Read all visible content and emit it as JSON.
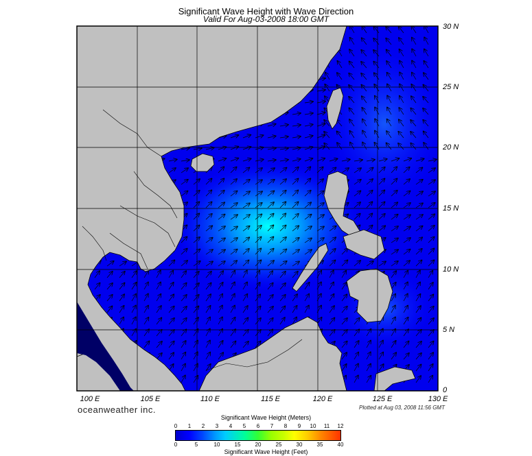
{
  "header": {
    "title": "Significant Wave Height with Wave Direction",
    "subtitle": "Valid For Aug-03-2008 18:00 GMT"
  },
  "map": {
    "lat_labels": [
      "30 N",
      "25 N",
      "20 N",
      "15 N",
      "10 N",
      "5 N",
      "0"
    ],
    "lon_labels": [
      "100 E",
      "105 E",
      "110 E",
      "115 E",
      "120 E",
      "125 E",
      "130 E"
    ],
    "lon_range": [
      100,
      130
    ],
    "lat_range": [
      0,
      30
    ],
    "land_color": "#c0c0c0",
    "sea_color": "#0000ff",
    "peak_color": "#00ffff"
  },
  "footer": {
    "brand": "oceanweather inc.",
    "plotted": "Plotted at Aug 03, 2008 11:56 GMT"
  },
  "colorbar": {
    "title_top": "Significant Wave Height (Meters)",
    "title_bottom": "Significant Wave Height (Feet)",
    "meters_ticks": [
      "0",
      "1",
      "2",
      "3",
      "4",
      "5",
      "6",
      "7",
      "8",
      "9",
      "10",
      "11",
      "12"
    ],
    "feet_ticks": [
      "0",
      "5",
      "10",
      "15",
      "20",
      "25",
      "30",
      "35",
      "40"
    ]
  }
}
